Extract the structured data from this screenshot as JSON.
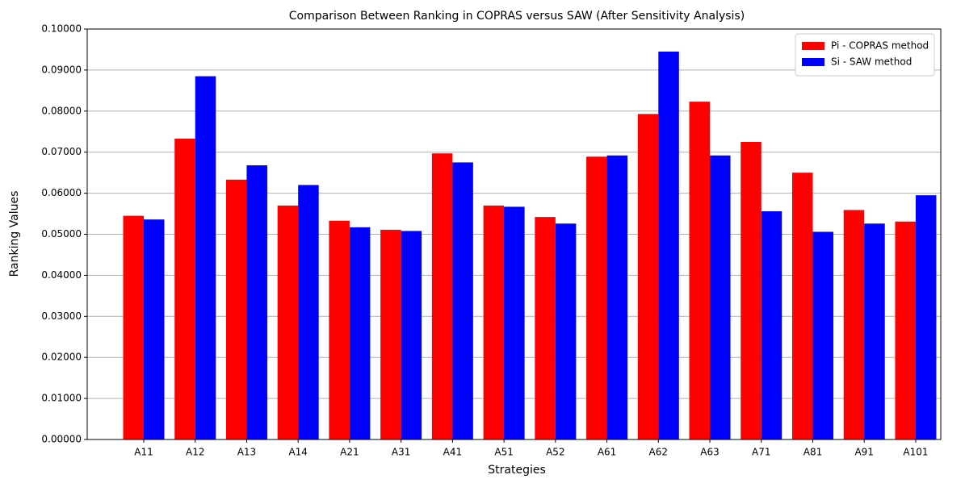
{
  "chart_data": {
    "type": "bar",
    "title": "Comparison Between Ranking in COPRAS versus SAW (After Sensitivity Analysis)",
    "x_label": "Strategies",
    "y_label": "Ranking Values",
    "categories": [
      "A11",
      "A12",
      "A13",
      "A14",
      "A21",
      "A31",
      "A41",
      "A51",
      "A52",
      "A61",
      "A62",
      "A63",
      "A71",
      "A81",
      "A91",
      "A101"
    ],
    "series": [
      {
        "name": "Pi - COPRAS method",
        "color": "#ff0000",
        "values": [
          0.0545,
          0.0733,
          0.0633,
          0.057,
          0.0533,
          0.0511,
          0.0697,
          0.057,
          0.0542,
          0.0689,
          0.0793,
          0.0823,
          0.0725,
          0.065,
          0.0559,
          0.0531
        ]
      },
      {
        "name": "Si - SAW method",
        "color": "#0000ff",
        "values": [
          0.0536,
          0.0885,
          0.0668,
          0.062,
          0.0517,
          0.0508,
          0.0675,
          0.0567,
          0.0526,
          0.0692,
          0.0945,
          0.0692,
          0.0556,
          0.0506,
          0.0526,
          0.0595
        ]
      }
    ],
    "ylim": [
      0,
      0.1
    ],
    "yticks": [
      {
        "value": 0,
        "label": "0.00000"
      },
      {
        "value": 0.01,
        "label": "0.01000"
      },
      {
        "value": 0.02,
        "label": "0.02000"
      },
      {
        "value": 0.03,
        "label": "0.03000"
      },
      {
        "value": 0.04,
        "label": "0.04000"
      },
      {
        "value": 0.05,
        "label": "0.05000"
      },
      {
        "value": 0.06,
        "label": "0.06000"
      },
      {
        "value": 0.07,
        "label": "0.07000"
      },
      {
        "value": 0.08,
        "label": "0.08000"
      },
      {
        "value": 0.09,
        "label": "0.09000"
      },
      {
        "value": 0.1,
        "label": "0.10000"
      }
    ],
    "grid": true,
    "legend": "upper right"
  }
}
